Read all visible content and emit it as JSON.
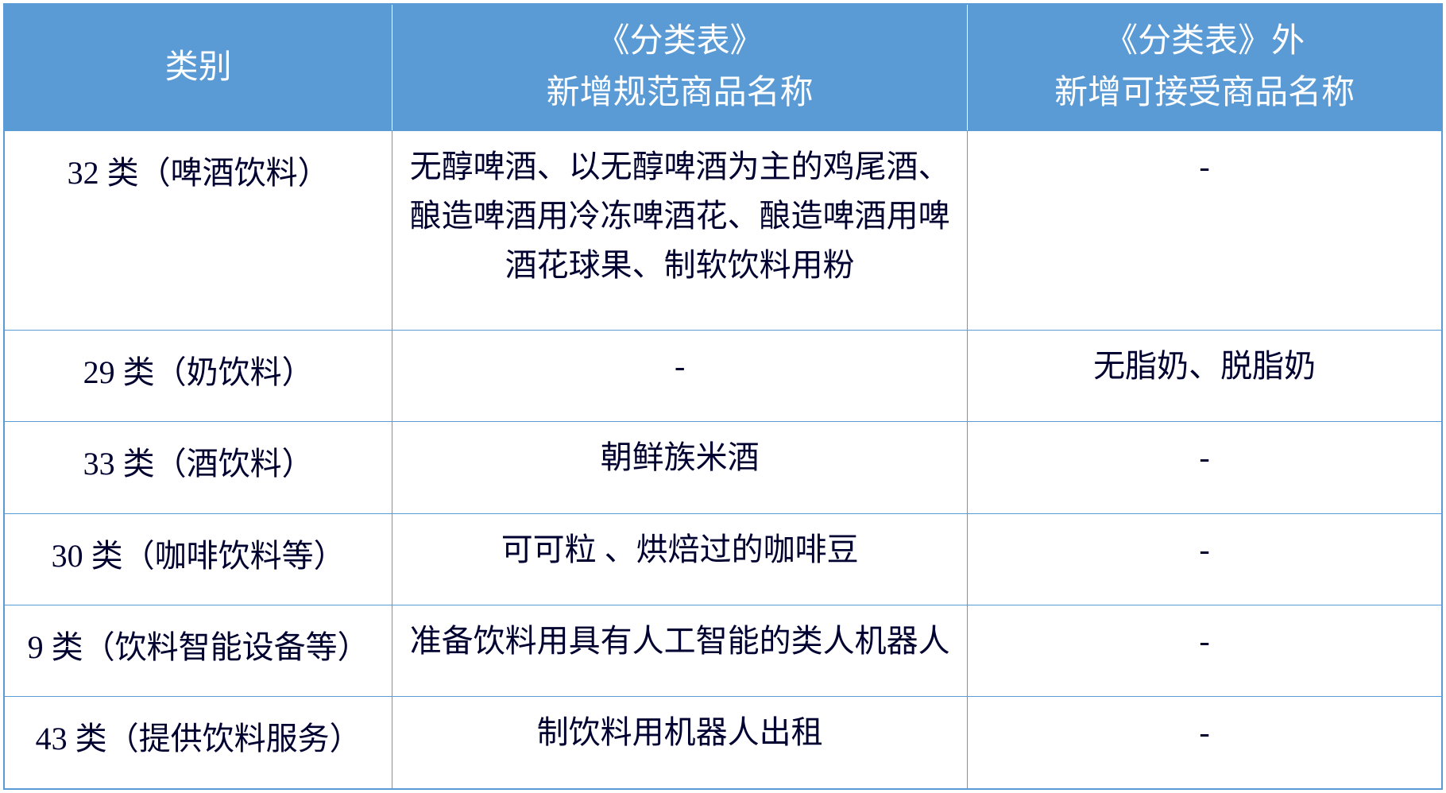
{
  "table": {
    "type": "table",
    "border_color": "#5b9bd5",
    "header_bg": "#5b9bd5",
    "header_text_color": "#ffffff",
    "body_text_color": "#000030",
    "background_color": "#ffffff",
    "font_family": "SimSun",
    "header_fontsize": 42,
    "body_fontsize": 40,
    "column_widths_pct": [
      27,
      40,
      33
    ],
    "columns": [
      "类别",
      "《分类表》\n新增规范商品名称",
      "《分类表》外\n新增可接受商品名称"
    ],
    "rows": [
      [
        "32 类（啤酒饮料）",
        "无醇啤酒、以无醇啤酒为主的鸡尾酒、酿造啤酒用冷冻啤酒花、酿造啤酒用啤酒花球果、制软饮料用粉",
        "-"
      ],
      [
        "29 类（奶饮料）",
        "-",
        "无脂奶、脱脂奶"
      ],
      [
        "33 类（酒饮料）",
        "朝鲜族米酒",
        "-"
      ],
      [
        "30 类（咖啡饮料等）",
        "可可粒 、烘焙过的咖啡豆",
        "-"
      ],
      [
        "9 类（饮料智能设备等）",
        "准备饮料用具有人工智能的类人机器人",
        "-"
      ],
      [
        "43 类（提供饮料服务）",
        "制饮料用机器人出租",
        "-"
      ]
    ]
  }
}
